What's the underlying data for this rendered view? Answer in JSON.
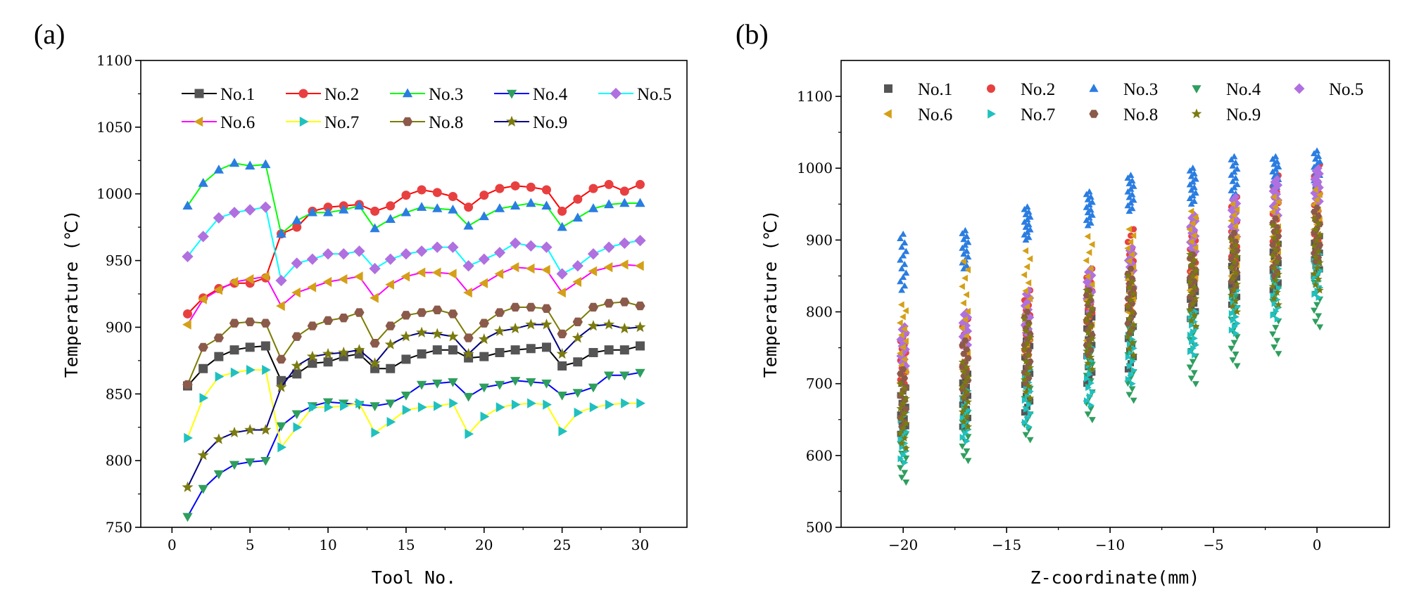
{
  "chart_data": [
    {
      "type": "line",
      "panel_label": "(a)",
      "xlabel": "Tool No.",
      "ylabel": "Temperature (℃)",
      "xlim": [
        -2,
        33
      ],
      "ylim": [
        750,
        1100
      ],
      "xticks": [
        0,
        5,
        10,
        15,
        20,
        25,
        30
      ],
      "yticks": [
        750,
        800,
        850,
        900,
        950,
        1000,
        1050,
        1100
      ],
      "legend_position": "top",
      "x": [
        1,
        2,
        3,
        4,
        5,
        6,
        7,
        8,
        9,
        10,
        11,
        12,
        13,
        14,
        15,
        16,
        17,
        18,
        19,
        20,
        21,
        22,
        23,
        24,
        25,
        26,
        27,
        28,
        29,
        30
      ],
      "series": [
        {
          "name": "No.1",
          "line_color": "#000000",
          "marker_color": "#555555",
          "marker": "square",
          "values": [
            856,
            869,
            878,
            883,
            885,
            886,
            860,
            865,
            873,
            874,
            878,
            880,
            869,
            869,
            876,
            880,
            883,
            883,
            877,
            878,
            881,
            883,
            884,
            885,
            871,
            874,
            881,
            883,
            883,
            886
          ]
        },
        {
          "name": "No.2",
          "line_color": "#ff0000",
          "marker_color": "#e84040",
          "marker": "circle",
          "values": [
            910,
            922,
            929,
            933,
            933,
            937,
            970,
            975,
            987,
            990,
            991,
            992,
            987,
            991,
            999,
            1003,
            1001,
            998,
            990,
            999,
            1004,
            1006,
            1005,
            1003,
            987,
            996,
            1004,
            1007,
            1002,
            1007
          ]
        },
        {
          "name": "No.3",
          "line_color": "#00ff00",
          "marker_color": "#2a7de1",
          "marker": "triangle-up",
          "values": [
            991,
            1008,
            1018,
            1023,
            1021,
            1022,
            970,
            980,
            986,
            986,
            988,
            991,
            974,
            981,
            986,
            990,
            989,
            988,
            976,
            983,
            989,
            991,
            993,
            991,
            975,
            982,
            989,
            992,
            993,
            993
          ]
        },
        {
          "name": "No.4",
          "line_color": "#0000ff",
          "marker_color": "#2e9e5e",
          "marker": "triangle-down",
          "values": [
            758,
            779,
            790,
            797,
            799,
            800,
            826,
            835,
            841,
            844,
            843,
            842,
            841,
            843,
            849,
            857,
            858,
            859,
            848,
            855,
            857,
            860,
            859,
            858,
            849,
            851,
            855,
            864,
            864,
            866
          ]
        },
        {
          "name": "No.5",
          "line_color": "#00ffff",
          "marker_color": "#b070e0",
          "marker": "diamond",
          "values": [
            953,
            968,
            982,
            986,
            988,
            990,
            935,
            948,
            951,
            955,
            955,
            957,
            944,
            951,
            955,
            957,
            960,
            960,
            946,
            951,
            956,
            963,
            961,
            960,
            940,
            946,
            955,
            960,
            963,
            965
          ]
        },
        {
          "name": "No.6",
          "line_color": "#ff00ff",
          "marker_color": "#d4a017",
          "marker": "triangle-left",
          "values": [
            902,
            921,
            928,
            934,
            936,
            938,
            916,
            926,
            930,
            934,
            936,
            938,
            922,
            932,
            938,
            941,
            941,
            940,
            926,
            933,
            940,
            945,
            944,
            943,
            926,
            934,
            942,
            945,
            947,
            946
          ]
        },
        {
          "name": "No.7",
          "line_color": "#ffff00",
          "marker_color": "#20c0c0",
          "marker": "triangle-right",
          "values": [
            817,
            847,
            863,
            866,
            868,
            868,
            810,
            825,
            840,
            840,
            841,
            843,
            821,
            829,
            838,
            840,
            841,
            843,
            820,
            833,
            840,
            842,
            843,
            842,
            822,
            836,
            840,
            842,
            843,
            843
          ]
        },
        {
          "name": "No.8",
          "line_color": "#7b7b00",
          "marker_color": "#8b5a4a",
          "marker": "hexagon",
          "values": [
            857,
            885,
            892,
            903,
            904,
            903,
            876,
            893,
            901,
            905,
            907,
            911,
            888,
            901,
            909,
            911,
            913,
            910,
            892,
            903,
            911,
            915,
            915,
            914,
            895,
            904,
            915,
            918,
            919,
            916
          ]
        },
        {
          "name": "No.9",
          "line_color": "#000080",
          "marker_color": "#7b7b10",
          "marker": "star",
          "values": [
            780,
            804,
            816,
            821,
            823,
            823,
            855,
            871,
            878,
            880,
            881,
            883,
            873,
            887,
            893,
            896,
            895,
            893,
            880,
            891,
            897,
            899,
            902,
            902,
            880,
            892,
            901,
            902,
            899,
            900
          ]
        }
      ]
    },
    {
      "type": "scatter",
      "panel_label": "(b)",
      "xlabel": "Z-coordinate(mm)",
      "ylabel": "Temperature (℃)",
      "xlim": [
        -23,
        3.5
      ],
      "ylim": [
        500,
        1150
      ],
      "xticks": [
        -20,
        -15,
        -10,
        -5,
        0
      ],
      "yticks": [
        500,
        600,
        700,
        800,
        900,
        1000,
        1100
      ],
      "legend_position": "top",
      "x": [
        -20,
        -17,
        -14,
        -11,
        -9,
        -6,
        -4,
        -2,
        0
      ],
      "series": [
        {
          "name": "No.1",
          "color": "#555555",
          "marker": "square",
          "ranges": [
            [
              630,
              700
            ],
            [
              640,
              720
            ],
            [
              660,
              760
            ],
            [
              700,
              800
            ],
            [
              720,
              830
            ],
            [
              790,
              860
            ],
            [
              810,
              880
            ],
            [
              830,
              900
            ],
            [
              850,
              910
            ]
          ]
        },
        {
          "name": "No.2",
          "color": "#e84040",
          "marker": "circle",
          "ranges": [
            [
              700,
              770
            ],
            [
              720,
              790
            ],
            [
              740,
              830
            ],
            [
              780,
              860
            ],
            [
              800,
              915
            ],
            [
              850,
              930
            ],
            [
              870,
              960
            ],
            [
              890,
              990
            ],
            [
              900,
              1005
            ]
          ]
        },
        {
          "name": "No.3",
          "color": "#2a7de1",
          "marker": "triangle-up",
          "ranges": [
            [
              830,
              908
            ],
            [
              860,
              913
            ],
            [
              900,
              946
            ],
            [
              920,
              967
            ],
            [
              940,
              990
            ],
            [
              950,
              1000
            ],
            [
              960,
              1016
            ],
            [
              970,
              1016
            ],
            [
              975,
              1024
            ]
          ]
        },
        {
          "name": "No.4",
          "color": "#2e9e5e",
          "marker": "triangle-down",
          "ranges": [
            [
              563,
              650
            ],
            [
              593,
              680
            ],
            [
              622,
              715
            ],
            [
              650,
              750
            ],
            [
              677,
              780
            ],
            [
              700,
              800
            ],
            [
              725,
              830
            ],
            [
              742,
              860
            ],
            [
              779,
              880
            ]
          ]
        },
        {
          "name": "No.5",
          "color": "#b070e0",
          "marker": "diamond",
          "ranges": [
            [
              720,
              780
            ],
            [
              750,
              800
            ],
            [
              760,
              830
            ],
            [
              800,
              860
            ],
            [
              830,
              890
            ],
            [
              880,
              935
            ],
            [
              900,
              960
            ],
            [
              930,
              985
            ],
            [
              950,
              1000
            ]
          ]
        },
        {
          "name": "No.6",
          "color": "#d4a017",
          "marker": "triangle-left",
          "ranges": [
            [
              700,
              810
            ],
            [
              720,
              870
            ],
            [
              740,
              885
            ],
            [
              760,
              905
            ],
            [
              800,
              915
            ],
            [
              830,
              940
            ],
            [
              850,
              950
            ],
            [
              870,
              960
            ],
            [
              880,
              970
            ]
          ]
        },
        {
          "name": "No.7",
          "color": "#20c0c0",
          "marker": "triangle-right",
          "ranges": [
            [
              590,
              660
            ],
            [
              620,
              690
            ],
            [
              640,
              720
            ],
            [
              670,
              750
            ],
            [
              700,
              780
            ],
            [
              740,
              800
            ],
            [
              770,
              830
            ],
            [
              790,
              860
            ],
            [
              820,
              880
            ]
          ]
        },
        {
          "name": "No.8",
          "color": "#8b5a4a",
          "marker": "hexagon",
          "ranges": [
            [
              640,
              720
            ],
            [
              680,
              760
            ],
            [
              700,
              800
            ],
            [
              740,
              830
            ],
            [
              770,
              860
            ],
            [
              810,
              880
            ],
            [
              830,
              910
            ],
            [
              850,
              930
            ],
            [
              870,
              945
            ]
          ]
        },
        {
          "name": "No.9",
          "color": "#7b7b10",
          "marker": "star",
          "ranges": [
            [
              610,
              700
            ],
            [
              640,
              730
            ],
            [
              680,
              790
            ],
            [
              720,
              830
            ],
            [
              740,
              850
            ],
            [
              780,
              880
            ],
            [
              800,
              900
            ],
            [
              810,
              920
            ],
            [
              830,
              930
            ]
          ]
        }
      ]
    }
  ]
}
